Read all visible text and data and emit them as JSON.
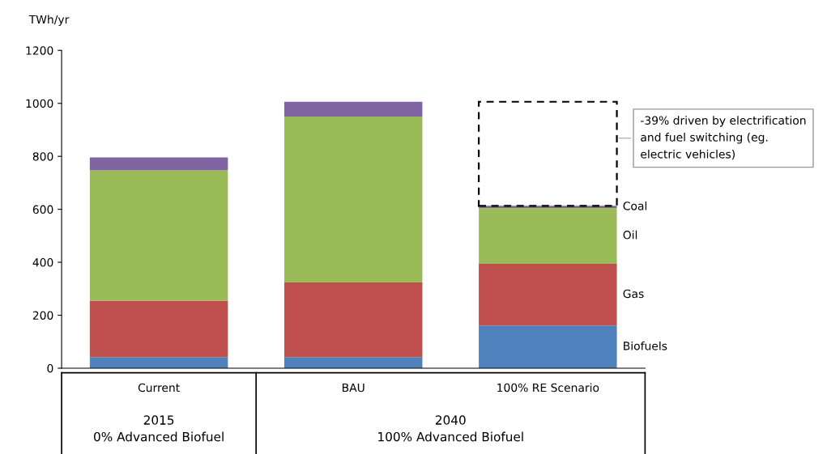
{
  "chart_data": {
    "type": "bar",
    "stacked": true,
    "ylabel": "TWh/yr",
    "categories": [
      "Current",
      "BAU",
      "100% RE Scenario"
    ],
    "series": [
      {
        "name": "Biofuels",
        "color": "#4f81bd",
        "values": [
          42,
          42,
          161
        ]
      },
      {
        "name": "Gas",
        "color": "#c0504d",
        "values": [
          213,
          282,
          233
        ]
      },
      {
        "name": "Oil",
        "color": "#9bbb59",
        "values": [
          492,
          626,
          211
        ]
      },
      {
        "name": "Coal",
        "color": "#8064a2",
        "values": [
          49,
          56,
          8
        ]
      }
    ],
    "ylim": [
      0,
      1200
    ],
    "yticks": [
      0,
      200,
      400,
      600,
      800,
      1000,
      1200
    ],
    "grid": false,
    "legend": false,
    "annotations": [
      "2015\n0% Advanced Biofuel",
      "2040\n100% Advanced Biofuel",
      "-39% driven by electrification\nand fuel switching (eg.\nelectric vehicles)"
    ]
  }
}
